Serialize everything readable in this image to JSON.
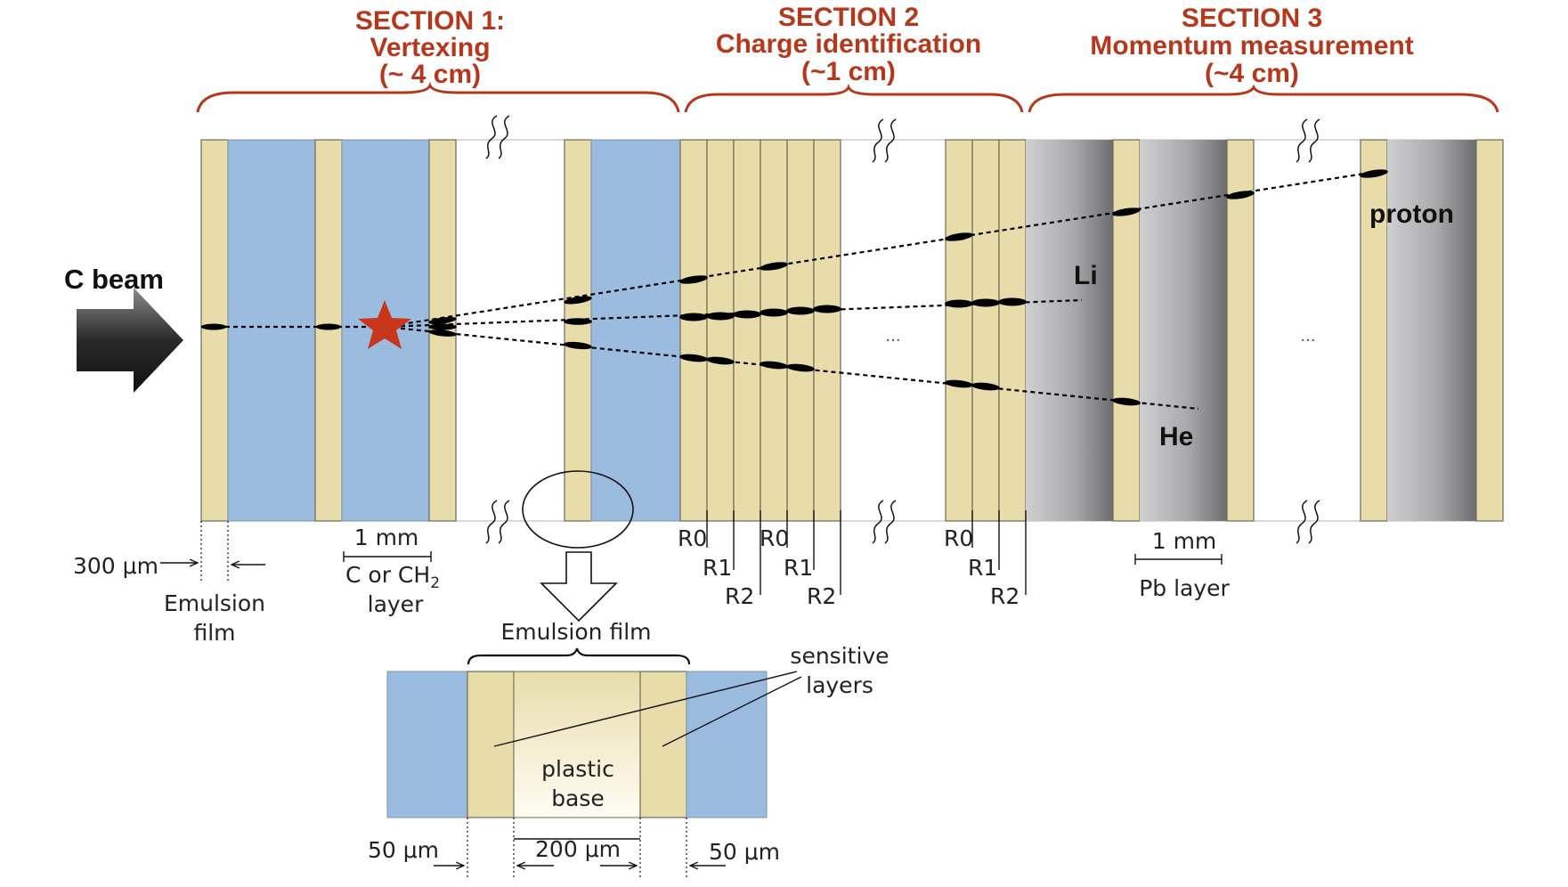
{
  "sections": [
    {
      "title": "SECTION 1:",
      "subtitle": "Vertexing",
      "size": "(~ 4 cm)"
    },
    {
      "title": "SECTION 2",
      "subtitle": "Charge identification",
      "size": "(~1 cm)"
    },
    {
      "title": "SECTION 3",
      "subtitle": "Momentum measurement",
      "size": "(~4 cm)"
    }
  ],
  "beam_label": "C beam",
  "particles": {
    "proton": "proton",
    "li": "Li",
    "he": "He"
  },
  "ellipsis": "...",
  "layer_labels": {
    "thickness_300": "300 μm",
    "emulsion_film_line1": "Emulsion",
    "emulsion_film_line2": "film",
    "one_mm": "1 mm",
    "c_or_ch2": "C or CH",
    "c_or_ch2_sub": "2",
    "layer": "layer",
    "one_mm_pb": "1 mm",
    "pb_layer": "Pb layer"
  },
  "readout_labels": {
    "group1": [
      "R0",
      "R1",
      "R2",
      "R0",
      "R1",
      "R2"
    ],
    "group2": [
      "R0",
      "R1",
      "R2"
    ]
  },
  "detail": {
    "title": "Emulsion film",
    "sensitive_line1": "sensitive",
    "sensitive_line2": "layers",
    "plastic_line1": "plastic",
    "plastic_line2": "base",
    "dim_left": "50 μm",
    "dim_mid": "200 μm",
    "dim_right": "50 μm"
  },
  "colors": {
    "section_title": "#b5381d",
    "emulsion_film": "#e8dcaa",
    "target_layer": "#9bbcdf",
    "lead_layer": "#8a8a8a",
    "track": "#000000",
    "vertex_star": "#c8361c"
  }
}
